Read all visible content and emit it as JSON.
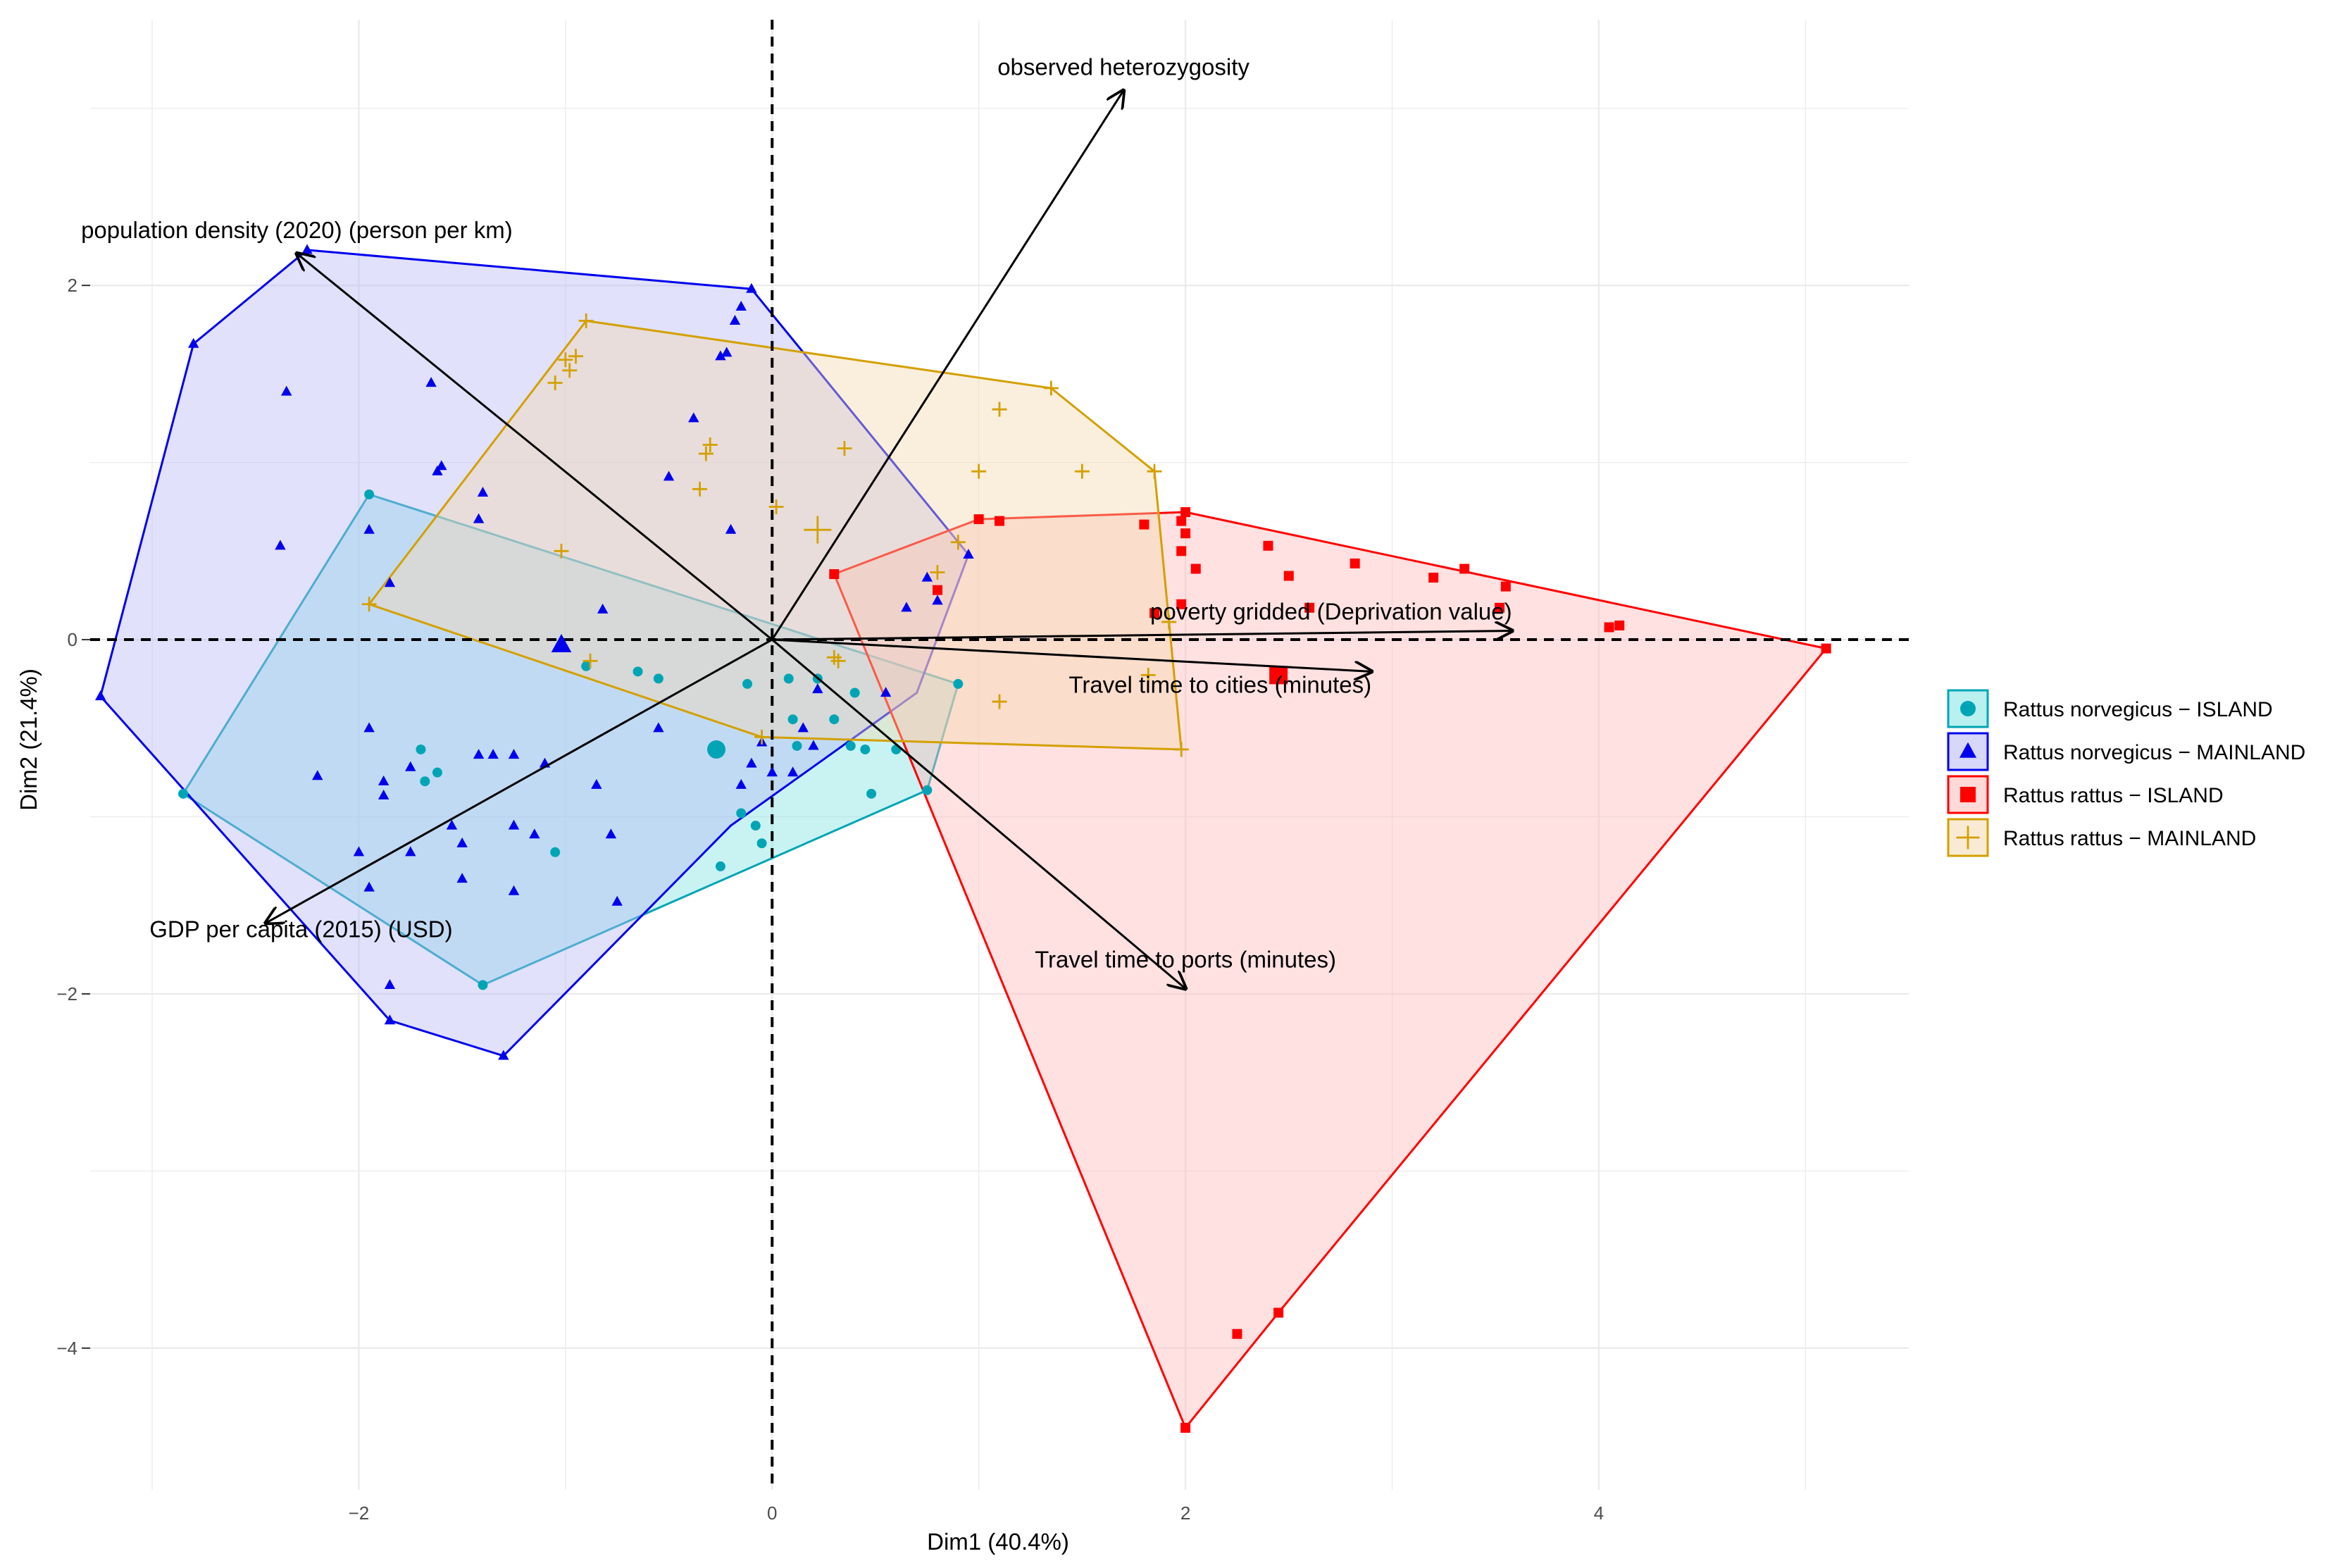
{
  "chart_data": {
    "type": "scatter",
    "subtype": "PCA biplot",
    "xlabel": "Dim1 (40.4%)",
    "ylabel": "Dim2 (21.4%)",
    "xlim": [
      -3.3,
      5.5
    ],
    "ylim": [
      -4.8,
      3.5
    ],
    "xticks": [
      -2,
      0,
      2,
      4
    ],
    "yticks": [
      -4,
      -2,
      0,
      2
    ],
    "xtick_labels": [
      "−2",
      "0",
      "2",
      "4"
    ],
    "ytick_labels": [
      "−4",
      "−2",
      "0",
      "2"
    ],
    "grid": true,
    "legend_position": "right",
    "reference_lines": {
      "x": 0,
      "y": 0,
      "style": "dashed"
    },
    "series": [
      {
        "name": "Rattus norvegicus − ISLAND",
        "color": "#00a5b5",
        "fill": "#7fe3e3",
        "shape": "circle",
        "hull": [
          [
            -1.95,
            0.82
          ],
          [
            0.9,
            -0.25
          ],
          [
            0.75,
            -0.85
          ],
          [
            -1.4,
            -1.95
          ],
          [
            -2.85,
            -0.87
          ]
        ],
        "centroid": [
          -0.27,
          -0.62
        ],
        "points": [
          [
            -1.95,
            0.82
          ],
          [
            0.9,
            -0.25
          ],
          [
            0.75,
            -0.85
          ],
          [
            -1.4,
            -1.95
          ],
          [
            -2.85,
            -0.87
          ],
          [
            -0.65,
            -0.18
          ],
          [
            -0.55,
            -0.22
          ],
          [
            -0.12,
            -0.25
          ],
          [
            0.08,
            -0.22
          ],
          [
            0.22,
            -0.22
          ],
          [
            0.1,
            -0.45
          ],
          [
            0.3,
            -0.45
          ],
          [
            0.38,
            -0.6
          ],
          [
            0.45,
            -0.62
          ],
          [
            0.6,
            -0.62
          ],
          [
            0.48,
            -0.87
          ],
          [
            0.12,
            -0.6
          ],
          [
            -0.15,
            -0.98
          ],
          [
            -0.08,
            -1.05
          ],
          [
            -0.05,
            -1.15
          ],
          [
            -0.25,
            -1.28
          ],
          [
            -1.05,
            -1.2
          ],
          [
            -1.7,
            -0.62
          ],
          [
            -1.62,
            -0.75
          ],
          [
            -1.68,
            -0.8
          ],
          [
            -0.9,
            -0.15
          ],
          [
            0.4,
            -0.3
          ]
        ]
      },
      {
        "name": "Rattus norvegicus − MAINLAND",
        "color": "#0000ee",
        "fill": "#b7b7f5",
        "shape": "triangle",
        "hull": [
          [
            -2.25,
            2.2
          ],
          [
            -0.1,
            1.98
          ],
          [
            0.95,
            0.48
          ],
          [
            0.7,
            -0.3
          ],
          [
            -0.2,
            -1.05
          ],
          [
            -1.3,
            -2.35
          ],
          [
            -1.85,
            -2.15
          ],
          [
            -3.25,
            -0.32
          ],
          [
            -2.8,
            1.67
          ]
        ],
        "centroid": [
          -1.02,
          -0.03
        ],
        "points": [
          [
            -2.25,
            2.2
          ],
          [
            -0.1,
            1.98
          ],
          [
            -2.8,
            1.67
          ],
          [
            -3.25,
            -0.32
          ],
          [
            -1.85,
            -2.15
          ],
          [
            -1.3,
            -2.35
          ],
          [
            0.95,
            0.48
          ],
          [
            -2.35,
            1.4
          ],
          [
            -1.65,
            1.45
          ],
          [
            -1.6,
            0.98
          ],
          [
            -1.62,
            0.95
          ],
          [
            -1.4,
            0.83
          ],
          [
            -1.42,
            0.68
          ],
          [
            -1.95,
            0.62
          ],
          [
            -2.38,
            0.53
          ],
          [
            -1.85,
            0.32
          ],
          [
            -0.15,
            1.88
          ],
          [
            -0.18,
            1.8
          ],
          [
            -0.25,
            1.6
          ],
          [
            -0.22,
            1.62
          ],
          [
            -0.38,
            1.25
          ],
          [
            -0.5,
            0.92
          ],
          [
            -0.82,
            0.17
          ],
          [
            -0.2,
            0.62
          ],
          [
            -1.95,
            -0.5
          ],
          [
            -2.2,
            -0.77
          ],
          [
            -1.88,
            -0.8
          ],
          [
            -1.88,
            -0.88
          ],
          [
            -1.75,
            -0.72
          ],
          [
            -1.25,
            -0.65
          ],
          [
            -1.35,
            -0.65
          ],
          [
            -1.42,
            -0.65
          ],
          [
            -1.1,
            -0.7
          ],
          [
            -0.85,
            -0.82
          ],
          [
            -1.25,
            -1.05
          ],
          [
            -1.15,
            -1.1
          ],
          [
            -0.78,
            -1.1
          ],
          [
            -1.55,
            -1.05
          ],
          [
            -1.5,
            -1.15
          ],
          [
            -2,
            -1.2
          ],
          [
            -1.75,
            -1.2
          ],
          [
            -1.5,
            -1.35
          ],
          [
            -1.25,
            -1.42
          ],
          [
            -1.95,
            -1.4
          ],
          [
            -1.85,
            -1.95
          ],
          [
            -0.75,
            -1.48
          ],
          [
            -0.55,
            -0.5
          ],
          [
            -0.1,
            -0.7
          ],
          [
            0,
            -0.75
          ],
          [
            -0.15,
            -0.82
          ],
          [
            0.1,
            -0.75
          ],
          [
            0.15,
            -0.5
          ],
          [
            0.22,
            -0.28
          ],
          [
            0.55,
            -0.3
          ],
          [
            0.75,
            0.35
          ],
          [
            0.8,
            0.22
          ],
          [
            0.65,
            0.18
          ],
          [
            -0.05,
            -0.58
          ],
          [
            0.2,
            -0.6
          ]
        ]
      },
      {
        "name": "Rattus rattus − ISLAND",
        "color": "#ff0000",
        "fill": "#ffb8b8",
        "shape": "square",
        "hull": [
          [
            0.3,
            0.37
          ],
          [
            1,
            0.68
          ],
          [
            2,
            0.72
          ],
          [
            5.1,
            -0.05
          ],
          [
            2.45,
            -3.8
          ],
          [
            2,
            -4.45
          ]
        ],
        "centroid": [
          2.45,
          -0.2
        ],
        "points": [
          [
            0.3,
            0.37
          ],
          [
            1,
            0.68
          ],
          [
            2,
            0.72
          ],
          [
            5.1,
            -0.05
          ],
          [
            2.45,
            -3.8
          ],
          [
            2,
            -4.45
          ],
          [
            1.1,
            0.67
          ],
          [
            1.8,
            0.65
          ],
          [
            1.98,
            0.67
          ],
          [
            2.4,
            0.53
          ],
          [
            2,
            0.6
          ],
          [
            1.98,
            0.5
          ],
          [
            2.05,
            0.4
          ],
          [
            2.5,
            0.36
          ],
          [
            2.82,
            0.43
          ],
          [
            3.2,
            0.35
          ],
          [
            3.35,
            0.4
          ],
          [
            3.55,
            0.3
          ],
          [
            3.52,
            0.18
          ],
          [
            1.98,
            0.2
          ],
          [
            1.85,
            0.15
          ],
          [
            2.6,
            0.18
          ],
          [
            4.05,
            0.07
          ],
          [
            4.1,
            0.08
          ],
          [
            0.8,
            0.28
          ],
          [
            2.25,
            -3.92
          ]
        ]
      },
      {
        "name": "Rattus rattus − MAINLAND",
        "color": "#d4a000",
        "fill": "#f4d9ae",
        "shape": "plus",
        "hull": [
          [
            -0.9,
            1.8
          ],
          [
            1.35,
            1.42
          ],
          [
            1.85,
            0.95
          ],
          [
            1.98,
            -0.62
          ],
          [
            -0.05,
            -0.55
          ],
          [
            -1.95,
            0.2
          ]
        ],
        "centroid": [
          0.22,
          0.62
        ],
        "points": [
          [
            -0.9,
            1.8
          ],
          [
            1.35,
            1.42
          ],
          [
            1.85,
            0.95
          ],
          [
            1.98,
            -0.62
          ],
          [
            -0.05,
            -0.55
          ],
          [
            -1.95,
            0.2
          ],
          [
            -0.95,
            1.6
          ],
          [
            -1,
            1.58
          ],
          [
            -0.98,
            1.52
          ],
          [
            -1.05,
            1.45
          ],
          [
            -0.32,
            1.05
          ],
          [
            -0.3,
            1.1
          ],
          [
            -0.35,
            0.85
          ],
          [
            0.35,
            1.08
          ],
          [
            1.1,
            1.3
          ],
          [
            1,
            0.95
          ],
          [
            1.5,
            0.95
          ],
          [
            0.02,
            0.75
          ],
          [
            0.8,
            0.38
          ],
          [
            0.9,
            0.55
          ],
          [
            0.3,
            -0.1
          ],
          [
            0.32,
            -0.12
          ],
          [
            -0.88,
            -0.12
          ],
          [
            1.1,
            -0.35
          ],
          [
            1.82,
            -0.2
          ],
          [
            1.92,
            0.1
          ],
          [
            -1.02,
            0.5
          ]
        ]
      }
    ],
    "variables": [
      {
        "label": "observed heterozygosity",
        "x": 1.7,
        "y": 3.1
      },
      {
        "label": "population density (2020) (person per km)",
        "x": -2.3,
        "y": 2.18
      },
      {
        "label": "poverty gridded (Deprivation value)",
        "x": 3.58,
        "y": 0.05
      },
      {
        "label": "Travel time to cities (minutes)",
        "x": 2.9,
        "y": -0.18
      },
      {
        "label": "Travel time to ports (minutes)",
        "x": 2,
        "y": -1.97
      },
      {
        "label": "GDP per capita (2015) (USD)",
        "x": -2.45,
        "y": -1.6
      }
    ]
  }
}
